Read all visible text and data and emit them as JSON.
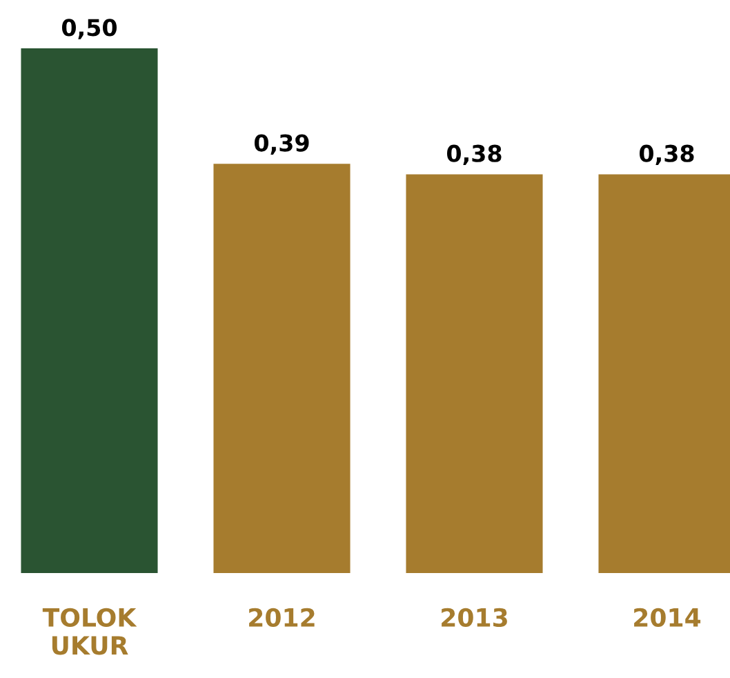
{
  "chart_data": {
    "type": "bar",
    "categories": [
      "TOLOK\nUKUR",
      "2012",
      "2013",
      "2014"
    ],
    "values": [
      0.5,
      0.39,
      0.38,
      0.38
    ],
    "value_labels": [
      "0,50",
      "0,39",
      "0,38",
      "0,38"
    ],
    "colors": [
      "#2a5432",
      "#a67c2e",
      "#a67c2e",
      "#a67c2e"
    ]
  }
}
